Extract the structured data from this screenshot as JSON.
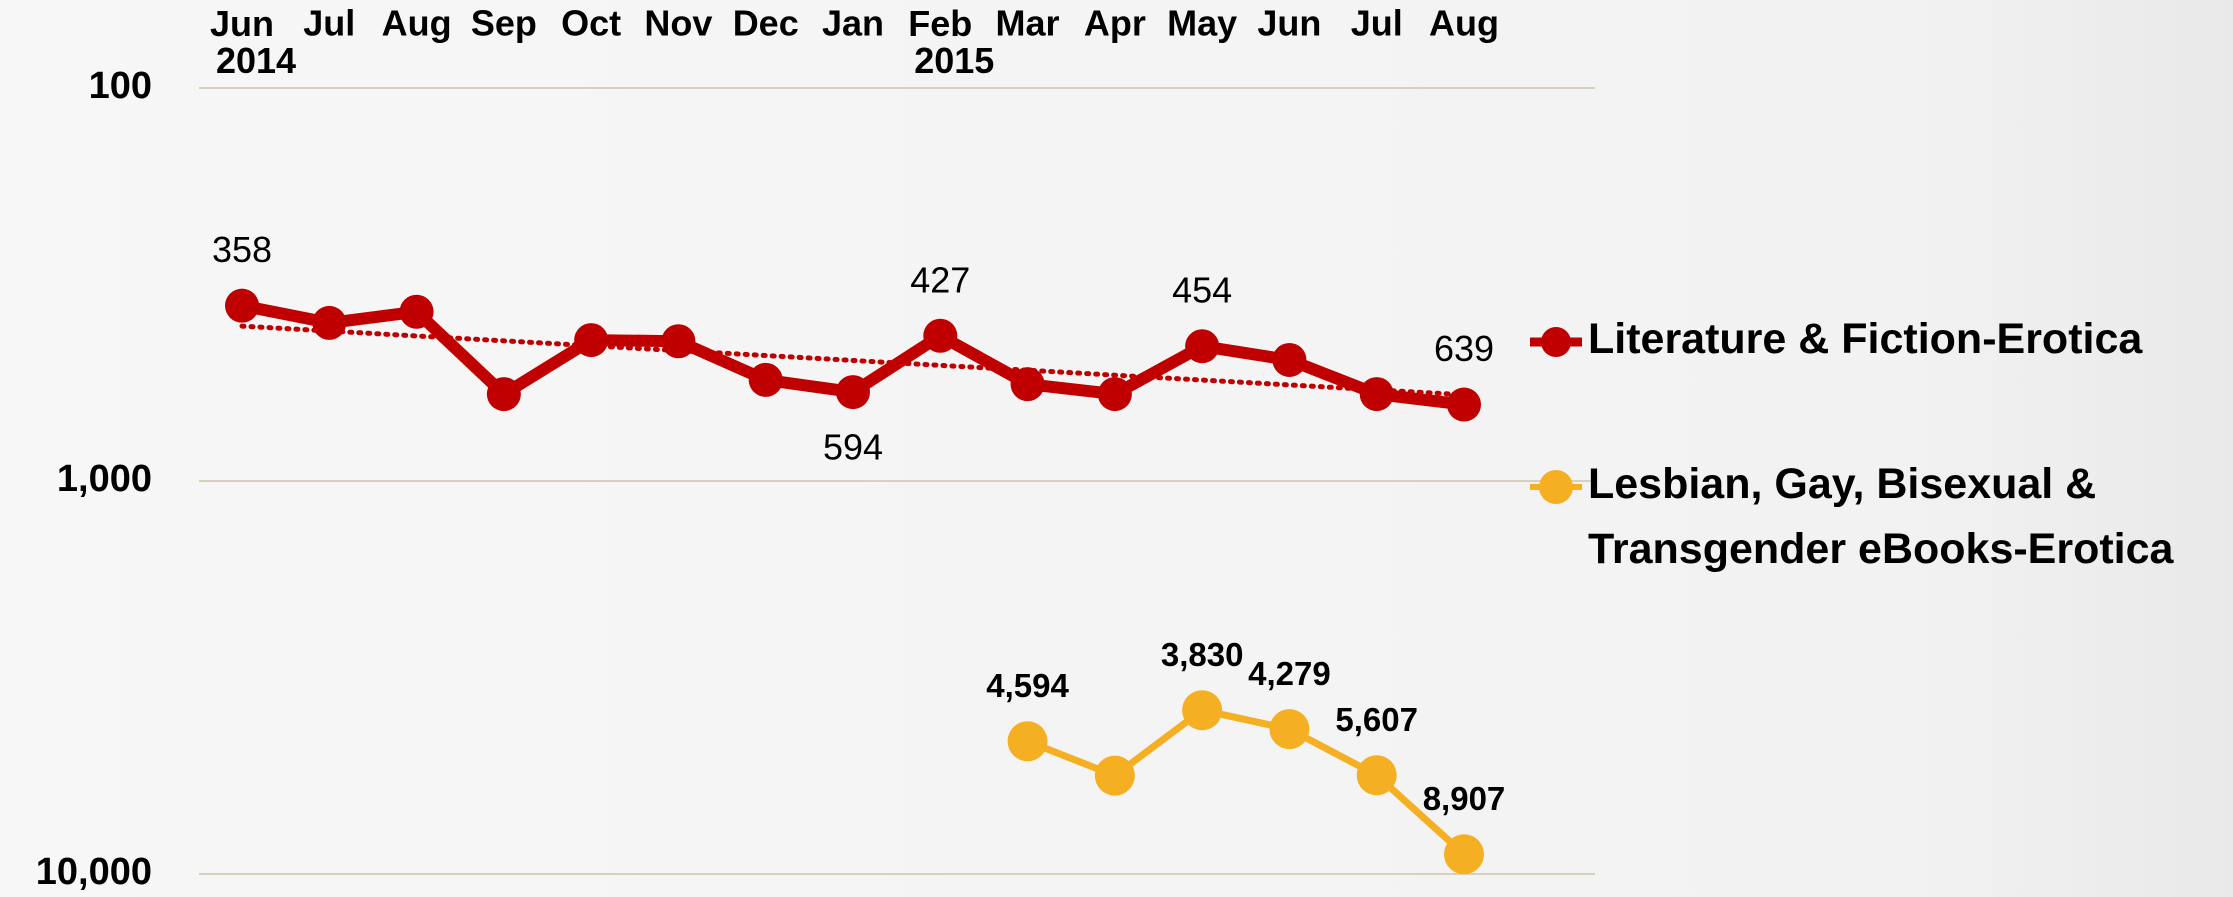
{
  "chart_data": {
    "type": "line",
    "categories": [
      "Jun 2014",
      "Jul",
      "Aug",
      "Sep",
      "Oct",
      "Nov",
      "Dec",
      "Jan",
      "Feb 2015",
      "Mar",
      "Apr",
      "May",
      "Jun",
      "Jul",
      "Aug"
    ],
    "series": [
      {
        "name": "Literature & Fiction-Erotica",
        "color": "#c00000",
        "values": [
          358,
          396,
          371,
          601,
          438,
          441,
          553,
          594,
          427,
          567,
          601,
          454,
          492,
          601,
          639
        ],
        "value_labels": [
          "358",
          null,
          null,
          null,
          null,
          null,
          null,
          "594",
          "427",
          null,
          null,
          "454",
          null,
          null,
          "639"
        ],
        "trendline": true
      },
      {
        "name": "Lesbian, Gay, Bisexual & Transgender eBooks-Erotica",
        "color": "#f4b022",
        "values": [
          null,
          null,
          null,
          null,
          null,
          null,
          null,
          null,
          null,
          4594,
          5620,
          3830,
          4279,
          5607,
          8907
        ],
        "value_labels": [
          null,
          null,
          null,
          null,
          null,
          null,
          null,
          null,
          null,
          "4,594",
          null,
          "3,830",
          "4,279",
          "5,607",
          "8,907"
        ]
      }
    ],
    "ylim": [
      100,
      10000
    ],
    "yticks": [
      100,
      {
        "value": 1000,
        "label": "1,000"
      },
      {
        "value": 10000,
        "label": "10,000"
      }
    ],
    "log_scale": true,
    "y_inverted": true,
    "grid": true,
    "legend": "right"
  }
}
